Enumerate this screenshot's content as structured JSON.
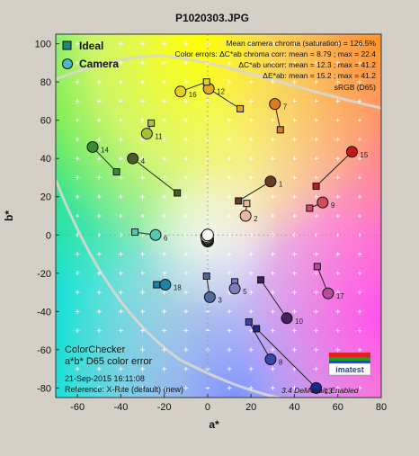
{
  "chart_data": {
    "type": "scatter",
    "title": "P1020303.JPG",
    "xlabel": "a*",
    "ylabel": "b*",
    "xlim": [
      -70,
      80
    ],
    "ylim": [
      -85,
      105
    ],
    "xticks": [
      -60,
      -40,
      -20,
      0,
      20,
      40,
      60,
      80
    ],
    "yticks": [
      -80,
      -60,
      -40,
      -20,
      0,
      20,
      40,
      60,
      80,
      100
    ],
    "legend": [
      {
        "name": "Ideal",
        "marker": "square"
      },
      {
        "name": "Camera",
        "marker": "circle"
      }
    ],
    "stats": [
      "Mean camera chroma (saturation) = 126.5%",
      "Color errors:  ΔC*ab chroma corr:  mean = 8.79 ;  max = 22.4",
      "ΔC*ab uncorr:  mean = 12.3 ;  max = 41.2",
      "ΔE*ab:  mean = 15.2 ;  max = 41.2",
      "sRGB (D65)"
    ],
    "info": [
      "ColorChecker",
      "a*b* D65 color error",
      "21-Sep-2015 16:11:08",
      "Reference: X-Rite (default) (new)"
    ],
    "footer_note": "3.4  DeMosaic Enabled",
    "logo_text": "imatest",
    "patches": [
      {
        "id": "1",
        "ideal": [
          14.2,
          17.8
        ],
        "camera": [
          29.0,
          28.0
        ],
        "color": "#6b3a22"
      },
      {
        "id": "2",
        "ideal": [
          18.0,
          16.5
        ],
        "camera": [
          17.5,
          10.0
        ],
        "color": "#e8b8a0"
      },
      {
        "id": "3",
        "ideal": [
          -0.5,
          -21.5
        ],
        "camera": [
          1.0,
          -32.5
        ],
        "color": "#4f6a9a"
      },
      {
        "id": "4",
        "ideal": [
          -14.0,
          22.0
        ],
        "camera": [
          -34.5,
          40.0
        ],
        "color": "#4a5a24"
      },
      {
        "id": "5",
        "ideal": [
          12.5,
          -24.5
        ],
        "camera": [
          12.5,
          -28.0
        ],
        "color": "#7f7cc0"
      },
      {
        "id": "6",
        "ideal": [
          -33.5,
          1.5
        ],
        "camera": [
          -24.0,
          0.0
        ],
        "color": "#54c8b0"
      },
      {
        "id": "7",
        "ideal": [
          33.5,
          55.0
        ],
        "camera": [
          31.0,
          68.5
        ],
        "color": "#e07a1c"
      },
      {
        "id": "8",
        "ideal": [
          19.0,
          -45.5
        ],
        "camera": [
          29.0,
          -65.0
        ],
        "color": "#3848a6"
      },
      {
        "id": "9",
        "ideal": [
          47.0,
          14.0
        ],
        "camera": [
          53.0,
          17.0
        ],
        "color": "#d24a62"
      },
      {
        "id": "10",
        "ideal": [
          24.5,
          -23.5
        ],
        "camera": [
          36.5,
          -43.5
        ],
        "color": "#40215e"
      },
      {
        "id": "11",
        "ideal": [
          -26.0,
          58.5
        ],
        "camera": [
          -28.0,
          53.0
        ],
        "color": "#a8c03c"
      },
      {
        "id": "12",
        "ideal": [
          15.0,
          66.0
        ],
        "camera": [
          0.5,
          76.5
        ],
        "color": "#e8a818"
      },
      {
        "id": "13",
        "ideal": [
          22.5,
          -49.0
        ],
        "camera": [
          50.0,
          -80.0
        ],
        "color": "#1c2890"
      },
      {
        "id": "14",
        "ideal": [
          -42.0,
          33.0
        ],
        "camera": [
          -53.0,
          46.0
        ],
        "color": "#3c8a38"
      },
      {
        "id": "15",
        "ideal": [
          50.0,
          25.5
        ],
        "camera": [
          66.5,
          43.5
        ],
        "color": "#c41818"
      },
      {
        "id": "16",
        "ideal": [
          -0.5,
          80.0
        ],
        "camera": [
          -12.5,
          75.0
        ],
        "color": "#e8d020"
      },
      {
        "id": "17",
        "ideal": [
          50.5,
          -16.5
        ],
        "camera": [
          55.5,
          -30.5
        ],
        "color": "#b64c96"
      },
      {
        "id": "18",
        "ideal": [
          -23.5,
          -26.0
        ],
        "camera": [
          -19.5,
          -26.0
        ],
        "color": "#1c84a8"
      }
    ],
    "neutrals": [
      {
        "camera": [
          0.0,
          0.0
        ],
        "color": "#f8f8f8"
      },
      {
        "camera": [
          -0.5,
          -0.8
        ],
        "color": "#c8c8c8"
      },
      {
        "camera": [
          -0.3,
          -1.5
        ],
        "color": "#a0a0a0"
      },
      {
        "camera": [
          0.0,
          -2.0
        ],
        "color": "#787878"
      },
      {
        "camera": [
          -0.2,
          -2.6
        ],
        "color": "#545454"
      },
      {
        "camera": [
          0.0,
          -3.2
        ],
        "color": "#343434"
      }
    ],
    "grid": true
  }
}
